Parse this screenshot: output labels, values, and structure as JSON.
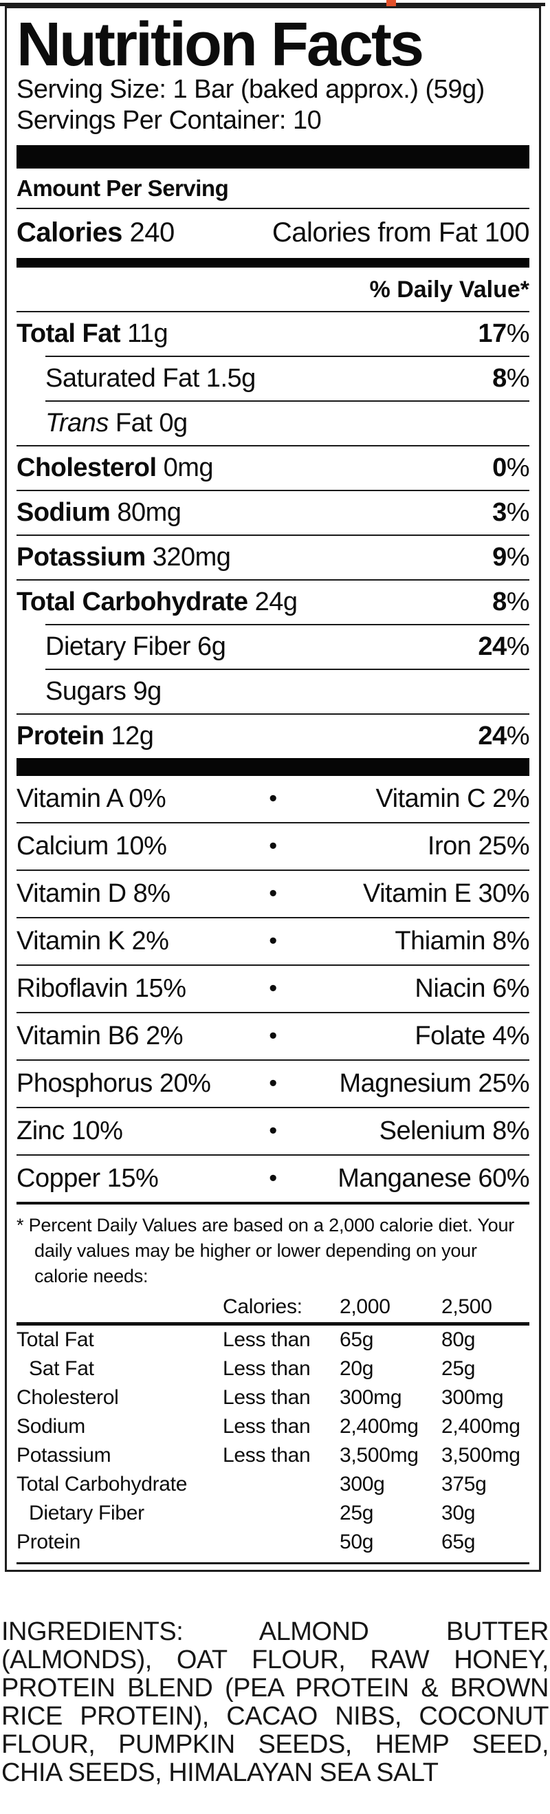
{
  "artifacts": {
    "red_mark_color": "#e2512b",
    "line_color": "#1c1c1c"
  },
  "label": {
    "title": "Nutrition Facts",
    "serving_size": "Serving Size: 1 Bar (baked approx.) (59g)",
    "servings_per_container": "Servings Per Container: 10",
    "amount_per_serving": "Amount Per Serving",
    "calories_label": "Calories",
    "calories_value": "240",
    "calories_from_fat": "Calories from Fat 100",
    "daily_value_header": "% Daily Value*",
    "nutrients": [
      {
        "name": "Total Fat",
        "amount": "11g",
        "dv": "17",
        "bold": true,
        "indent": 0,
        "sep": "none"
      },
      {
        "name": "Saturated Fat",
        "amount": "1.5g",
        "dv": "8",
        "bold": false,
        "indent": 1,
        "sep": "indent"
      },
      {
        "name_italic": "Trans",
        "name": " Fat",
        "amount": "0g",
        "dv": "",
        "bold": false,
        "indent": 1,
        "sep": "indent"
      },
      {
        "name": "Cholesterol",
        "amount": "0mg",
        "dv": "0",
        "bold": true,
        "indent": 0,
        "sep": "full"
      },
      {
        "name": "Sodium",
        "amount": "80mg",
        "dv": "3",
        "bold": true,
        "indent": 0,
        "sep": "full"
      },
      {
        "name": "Potassium",
        "amount": "320mg",
        "dv": "9",
        "bold": true,
        "indent": 0,
        "sep": "full"
      },
      {
        "name": "Total Carbohydrate",
        "amount": "24g",
        "dv": "8",
        "bold": true,
        "indent": 0,
        "sep": "full"
      },
      {
        "name": "Dietary Fiber",
        "amount": "6g",
        "dv": "24",
        "bold": false,
        "indent": 1,
        "sep": "indent"
      },
      {
        "name": "Sugars",
        "amount": "9g",
        "dv": "",
        "bold": false,
        "indent": 1,
        "sep": "indent"
      },
      {
        "name": "Protein",
        "amount": "12g",
        "dv": "24",
        "bold": true,
        "indent": 0,
        "sep": "full"
      }
    ],
    "vitamins": [
      {
        "left": "Vitamin A 0%",
        "right": "Vitamin C 2%"
      },
      {
        "left": "Calcium 10%",
        "right": "Iron 25%"
      },
      {
        "left": "Vitamin D 8%",
        "right": "Vitamin E 30%"
      },
      {
        "left": "Vitamin K 2%",
        "right": "Thiamin 8%"
      },
      {
        "left": "Riboflavin 15%",
        "right": "Niacin 6%"
      },
      {
        "left": "Vitamin B6 2%",
        "right": "Folate 4%"
      },
      {
        "left": "Phosphorus 20%",
        "right": "Magnesium 25%"
      },
      {
        "left": "Zinc 10%",
        "right": "Selenium 8%"
      },
      {
        "left": "Copper 15%",
        "right": "Manganese 60%"
      }
    ],
    "bullet": "•",
    "footnote": "* Percent Daily Values are based on a 2,000 calorie diet. Your daily values may be higher or lower depending on your calorie needs:",
    "dv_table": {
      "header": {
        "col2": "Calories:",
        "col3": "2,000",
        "col4": "2,500"
      },
      "rows": [
        {
          "label": "Total Fat",
          "qualifier": "Less than",
          "v2000": "65g",
          "v2500": "80g",
          "indent": 0
        },
        {
          "label": "Sat Fat",
          "qualifier": "Less than",
          "v2000": "20g",
          "v2500": "25g",
          "indent": 1
        },
        {
          "label": "Cholesterol",
          "qualifier": "Less than",
          "v2000": "300mg",
          "v2500": "300mg",
          "indent": 0
        },
        {
          "label": "Sodium",
          "qualifier": "Less than",
          "v2000": "2,400mg",
          "v2500": "2,400mg",
          "indent": 0
        },
        {
          "label": "Potassium",
          "qualifier": "Less than",
          "v2000": "3,500mg",
          "v2500": "3,500mg",
          "indent": 0
        },
        {
          "label": "Total Carbohydrate",
          "qualifier": "",
          "v2000": "300g",
          "v2500": "375g",
          "indent": 0
        },
        {
          "label": "Dietary Fiber",
          "qualifier": "",
          "v2000": "25g",
          "v2500": "30g",
          "indent": 1
        },
        {
          "label": "Protein",
          "qualifier": "",
          "v2000": "50g",
          "v2500": "65g",
          "indent": 0
        }
      ]
    }
  },
  "ingredients": "INGREDIENTS: ALMOND BUTTER (ALMONDS), OAT FLOUR, RAW HONEY, PROTEIN BLEND (PEA PROTEIN & BROWN RICE PROTEIN), CACAO NIBS, COCONUT FLOUR, PUMPKIN SEEDS, HEMP SEED, CHIA SEEDS, HIMALAYAN SEA SALT"
}
